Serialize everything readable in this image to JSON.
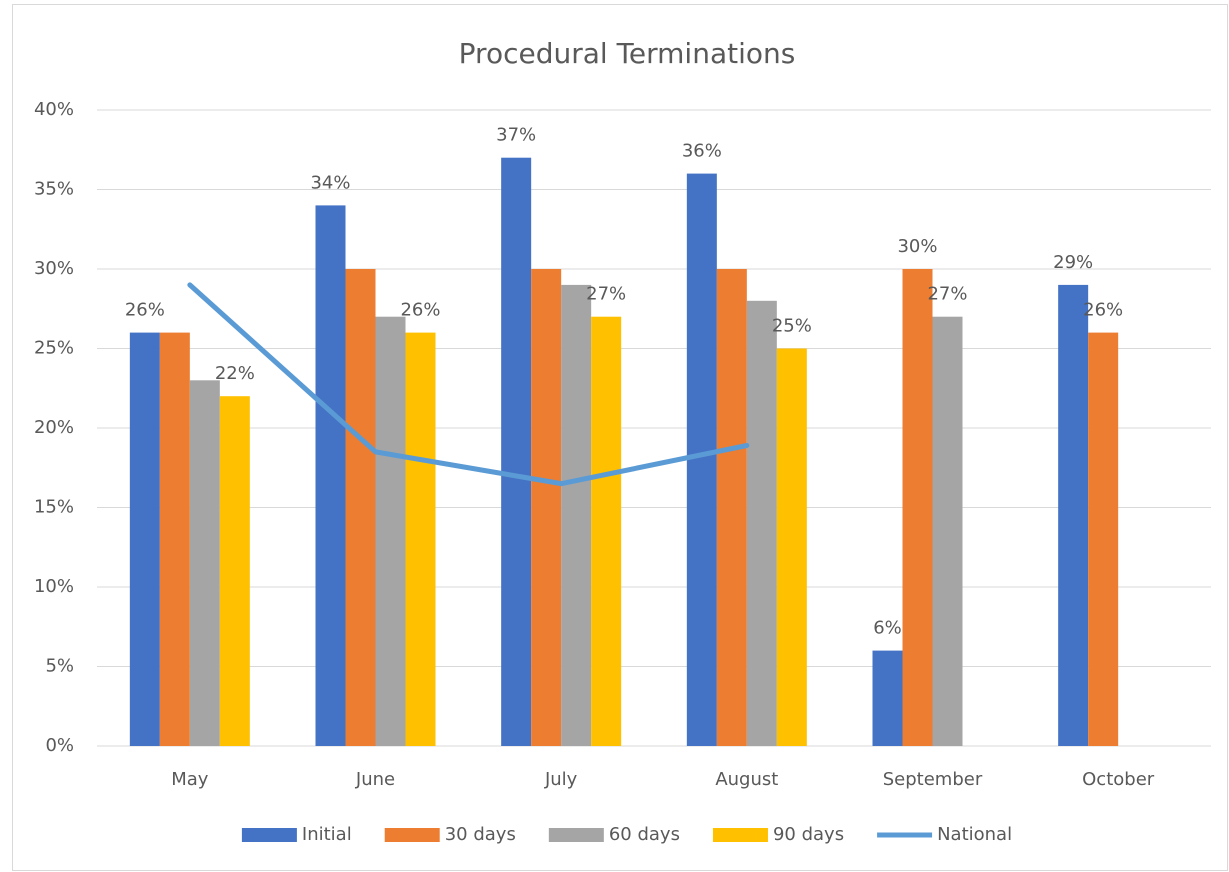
{
  "chart_data": {
    "type": "bar",
    "title": "Procedural Terminations",
    "categories": [
      "May",
      "June",
      "July",
      "August",
      "September",
      "October"
    ],
    "series": [
      {
        "name": "Initial",
        "color": "#4472c4",
        "values": [
          26,
          34,
          37,
          36,
          6,
          29
        ],
        "value_labels": [
          "26%",
          "34%",
          "37%",
          "36%",
          "6%",
          "29%"
        ]
      },
      {
        "name": "30 days",
        "color": "#ed7d31",
        "values": [
          26,
          30,
          30,
          30,
          30,
          26
        ],
        "value_labels": [
          null,
          null,
          null,
          null,
          "30%",
          "26%"
        ]
      },
      {
        "name": "60 days",
        "color": "#a5a5a5",
        "values": [
          23,
          27,
          29,
          28,
          27,
          null
        ],
        "value_labels": [
          null,
          null,
          null,
          null,
          "27%",
          null
        ]
      },
      {
        "name": "90 days",
        "color": "#ffc000",
        "values": [
          22,
          26,
          27,
          25,
          null,
          null
        ],
        "value_labels": [
          "22%",
          "26%",
          "27%",
          "25%",
          null,
          null
        ]
      },
      {
        "name": "National",
        "type": "line",
        "color": "#5b9bd5",
        "values": [
          29,
          18.5,
          16.5,
          18.9,
          null,
          null
        ]
      }
    ],
    "ylim": [
      0,
      40
    ],
    "yticks": [
      {
        "value": 0,
        "label": "0%"
      },
      {
        "value": 5,
        "label": "5%"
      },
      {
        "value": 10,
        "label": "10%"
      },
      {
        "value": 15,
        "label": "15%"
      },
      {
        "value": 20,
        "label": "20%"
      },
      {
        "value": 25,
        "label": "25%"
      },
      {
        "value": 30,
        "label": "30%"
      },
      {
        "value": 35,
        "label": "35%"
      },
      {
        "value": 40,
        "label": "40%"
      }
    ],
    "grid": true,
    "legend": "bottom"
  }
}
